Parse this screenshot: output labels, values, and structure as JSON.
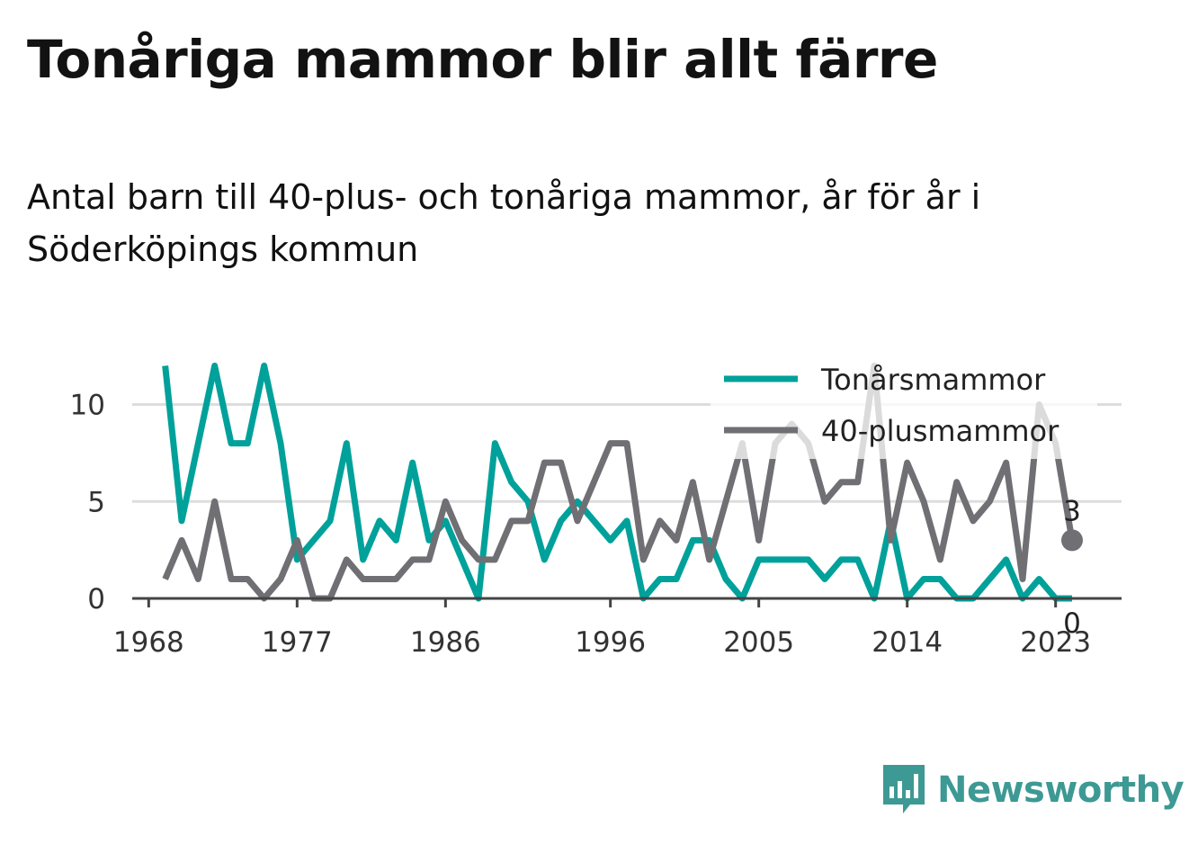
{
  "header": {
    "title": "Tonåriga mammor blir allt färre",
    "subtitle": "Antal barn till 40-plus- och tonåriga mammor, år för år i Söderköpings kommun"
  },
  "brand": {
    "name": "Newsworthy",
    "icon": "newsworthy-logo-icon",
    "color": "#3d9993"
  },
  "chart_data": {
    "type": "line",
    "x": [
      1969,
      1970,
      1971,
      1972,
      1973,
      1974,
      1975,
      1976,
      1977,
      1978,
      1979,
      1980,
      1981,
      1982,
      1983,
      1984,
      1985,
      1986,
      1987,
      1988,
      1989,
      1990,
      1991,
      1992,
      1993,
      1994,
      1995,
      1996,
      1997,
      1998,
      1999,
      2000,
      2001,
      2002,
      2003,
      2004,
      2005,
      2006,
      2007,
      2008,
      2009,
      2010,
      2011,
      2012,
      2013,
      2014,
      2015,
      2016,
      2017,
      2018,
      2019,
      2020,
      2021,
      2022,
      2023,
      2024
    ],
    "series": [
      {
        "name": "Tonårsmammor",
        "color": "#00a19a",
        "values": [
          12,
          4,
          8,
          12,
          8,
          8,
          12,
          8,
          2,
          3,
          4,
          8,
          2,
          4,
          3,
          7,
          3,
          4,
          2,
          0,
          8,
          6,
          5,
          2,
          4,
          5,
          4,
          3,
          4,
          0,
          1,
          1,
          3,
          3,
          1,
          0,
          2,
          2,
          2,
          2,
          1,
          2,
          2,
          0,
          4,
          0,
          1,
          1,
          0,
          0,
          1,
          2,
          0,
          1,
          0,
          0
        ],
        "end_label": "0"
      },
      {
        "name": "40-plusmammor",
        "color": "#6f6f74",
        "values": [
          1,
          3,
          1,
          5,
          1,
          1,
          0,
          1,
          3,
          0,
          0,
          2,
          1,
          1,
          1,
          2,
          2,
          5,
          3,
          2,
          2,
          4,
          4,
          7,
          7,
          4,
          6,
          8,
          8,
          2,
          4,
          3,
          6,
          2,
          5,
          8,
          3,
          8,
          9,
          8,
          5,
          6,
          6,
          12,
          3,
          7,
          5,
          2,
          6,
          4,
          5,
          7,
          1,
          10,
          8,
          3
        ],
        "end_label": "3"
      }
    ],
    "x_ticks": [
      1968,
      1977,
      1986,
      1996,
      2005,
      2014,
      2023
    ],
    "y_ticks": [
      0,
      5,
      10
    ],
    "xlim": [
      1967,
      2027
    ],
    "ylim": [
      0,
      12.3
    ],
    "title": "Tonåriga mammor blir allt färre",
    "subtitle": "Antal barn till 40-plus- och tonåriga mammor, år för år i Söderköpings kommun",
    "xlabel": "",
    "ylabel": "",
    "grid": true,
    "legend_position": "top-right"
  }
}
